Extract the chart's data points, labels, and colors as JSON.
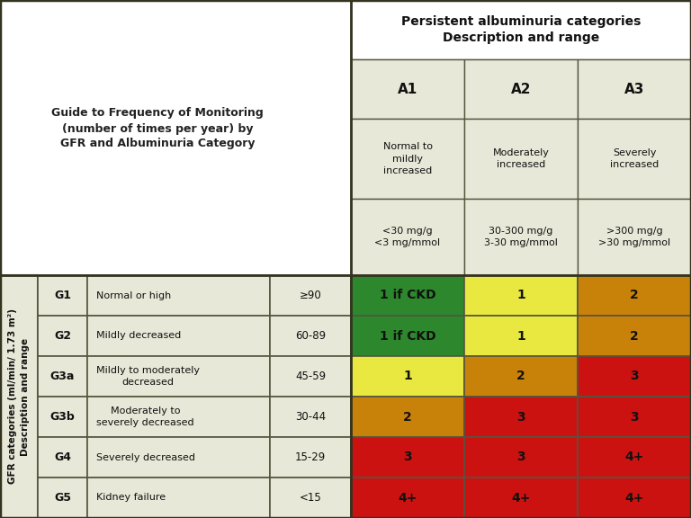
{
  "title_left": "Guide to Frequency of Monitoring\n(number of times per year) by\nGFR and Albuminuria Category",
  "top_header": "Persistent albuminuria categories\nDescription and range",
  "col_headers": [
    "A1",
    "A2",
    "A3"
  ],
  "col_desc": [
    "Normal to\nmildly\nincreased",
    "Moderately\nincreased",
    "Severely\nincreased"
  ],
  "col_range": [
    "<30 mg/g\n<3 mg/mmol",
    "30-300 mg/g\n3-30 mg/mmol",
    ">300 mg/g\n>30 mg/mmol"
  ],
  "row_labels": [
    "G1",
    "G2",
    "G3a",
    "G3b",
    "G4",
    "G5"
  ],
  "row_desc": [
    "Normal or high",
    "Mildly decreased",
    "Mildly to moderately\ndecreased",
    "Moderately to\nseverely decreased",
    "Severely decreased",
    "Kidney failure"
  ],
  "row_range": [
    "≥90",
    "60-89",
    "45-59",
    "30-44",
    "15-29",
    "<15"
  ],
  "gfr_label": "GFR categories (ml/min/ 1.73 m²)\nDescription and range",
  "cell_values": [
    [
      "1 if CKD",
      "1",
      "2"
    ],
    [
      "1 if CKD",
      "1",
      "2"
    ],
    [
      "1",
      "2",
      "3"
    ],
    [
      "2",
      "3",
      "3"
    ],
    [
      "3",
      "3",
      "4+"
    ],
    [
      "4+",
      "4+",
      "4+"
    ]
  ],
  "cell_colors": [
    [
      "#2d882d",
      "#e8e840",
      "#c8820a"
    ],
    [
      "#2d882d",
      "#e8e840",
      "#c8820a"
    ],
    [
      "#e8e840",
      "#c8820a",
      "#cc1111"
    ],
    [
      "#c8820a",
      "#cc1111",
      "#cc1111"
    ],
    [
      "#cc1111",
      "#cc1111",
      "#cc1111"
    ],
    [
      "#cc1111",
      "#cc1111",
      "#cc1111"
    ]
  ],
  "header_bg": "#e8e8d8",
  "top_header_bg": "#ffffff",
  "border_color": "#555540",
  "text_color_dark": "#111111",
  "fig_bg": "#ffffff",
  "thick_border": "#333320"
}
